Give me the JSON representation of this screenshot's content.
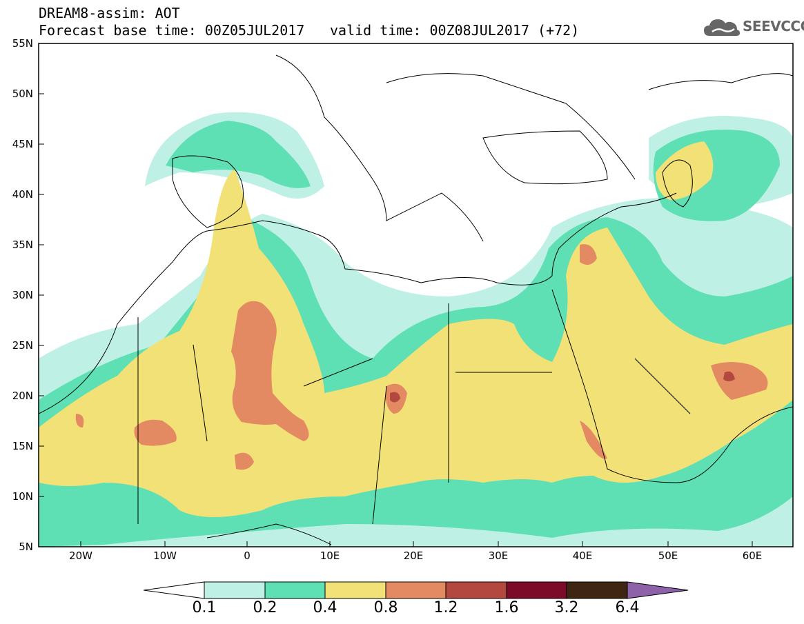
{
  "header": {
    "title": "DREAM8-assim: AOT",
    "base_time": "Forecast base time: 00Z05JUL2017",
    "valid_time": "valid time: 00Z08JUL2017 (+72)"
  },
  "logo": {
    "icon": "cloud-icon",
    "text": "SEEVCCC"
  },
  "map": {
    "lat_labels": [
      "55N",
      "50N",
      "45N",
      "40N",
      "35N",
      "30N",
      "25N",
      "20N",
      "15N",
      "10N",
      "5N"
    ],
    "lon_labels": [
      "20W",
      "10W",
      "0",
      "10E",
      "20E",
      "30E",
      "40E",
      "50E",
      "60E"
    ]
  },
  "colorbar": {
    "labels": [
      "0.1",
      "0.2",
      "0.4",
      "0.8",
      "1.2",
      "1.6",
      "3.2",
      "6.4"
    ],
    "colors": [
      "#ffffff",
      "#bff0e6",
      "#5fe0b4",
      "#f2e177",
      "#e38a63",
      "#b3483f",
      "#7c0b2a",
      "#3e2612",
      "#8e62a8"
    ]
  },
  "palette": {
    "c01": "#bff0e6",
    "c02": "#5fe0b4",
    "c04": "#f2e177",
    "c08": "#e38a63",
    "c12": "#b3483f"
  }
}
